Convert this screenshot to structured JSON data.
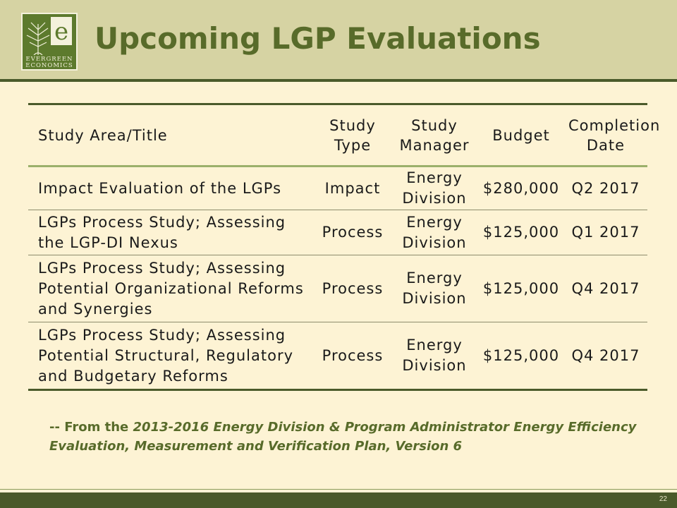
{
  "logo": {
    "text_line1": "EVERGREEN",
    "text_line2": "ECONOMICS"
  },
  "title": "Upcoming LGP Evaluations",
  "table": {
    "headers": [
      "Study Area/Title",
      "Study Type",
      "Study Manager",
      "Budget",
      "Completion Date"
    ],
    "rows": [
      [
        "Impact Evaluation of the LGPs",
        "Impact",
        "Energy Division",
        "$280,000",
        "Q2 2017"
      ],
      [
        "LGPs Process Study; Assessing the LGP-DI Nexus",
        "Process",
        "Energy Division",
        "$125,000",
        "Q1 2017"
      ],
      [
        "LGPs Process Study; Assessing Potential Organizational Reforms and Synergies",
        "Process",
        "Energy Division",
        "$125,000",
        "Q4 2017"
      ],
      [
        "LGPs Process Study; Assessing Potential Structural, Regulatory and Budgetary Reforms",
        "Process",
        "Energy Division",
        "$125,000",
        "Q4 2017"
      ]
    ]
  },
  "source": {
    "prefix": "-- From the ",
    "italic": "2013-2016 Energy Division & Program Administrator Energy Efficiency Evaluation, Measurement and Verification Plan, Version 6"
  },
  "page_number": "22",
  "colors": {
    "header_band": "#d6d3a3",
    "accent_green": "#586b2a",
    "dark_green": "#4a5a2a",
    "background": "#fdf3d4"
  }
}
